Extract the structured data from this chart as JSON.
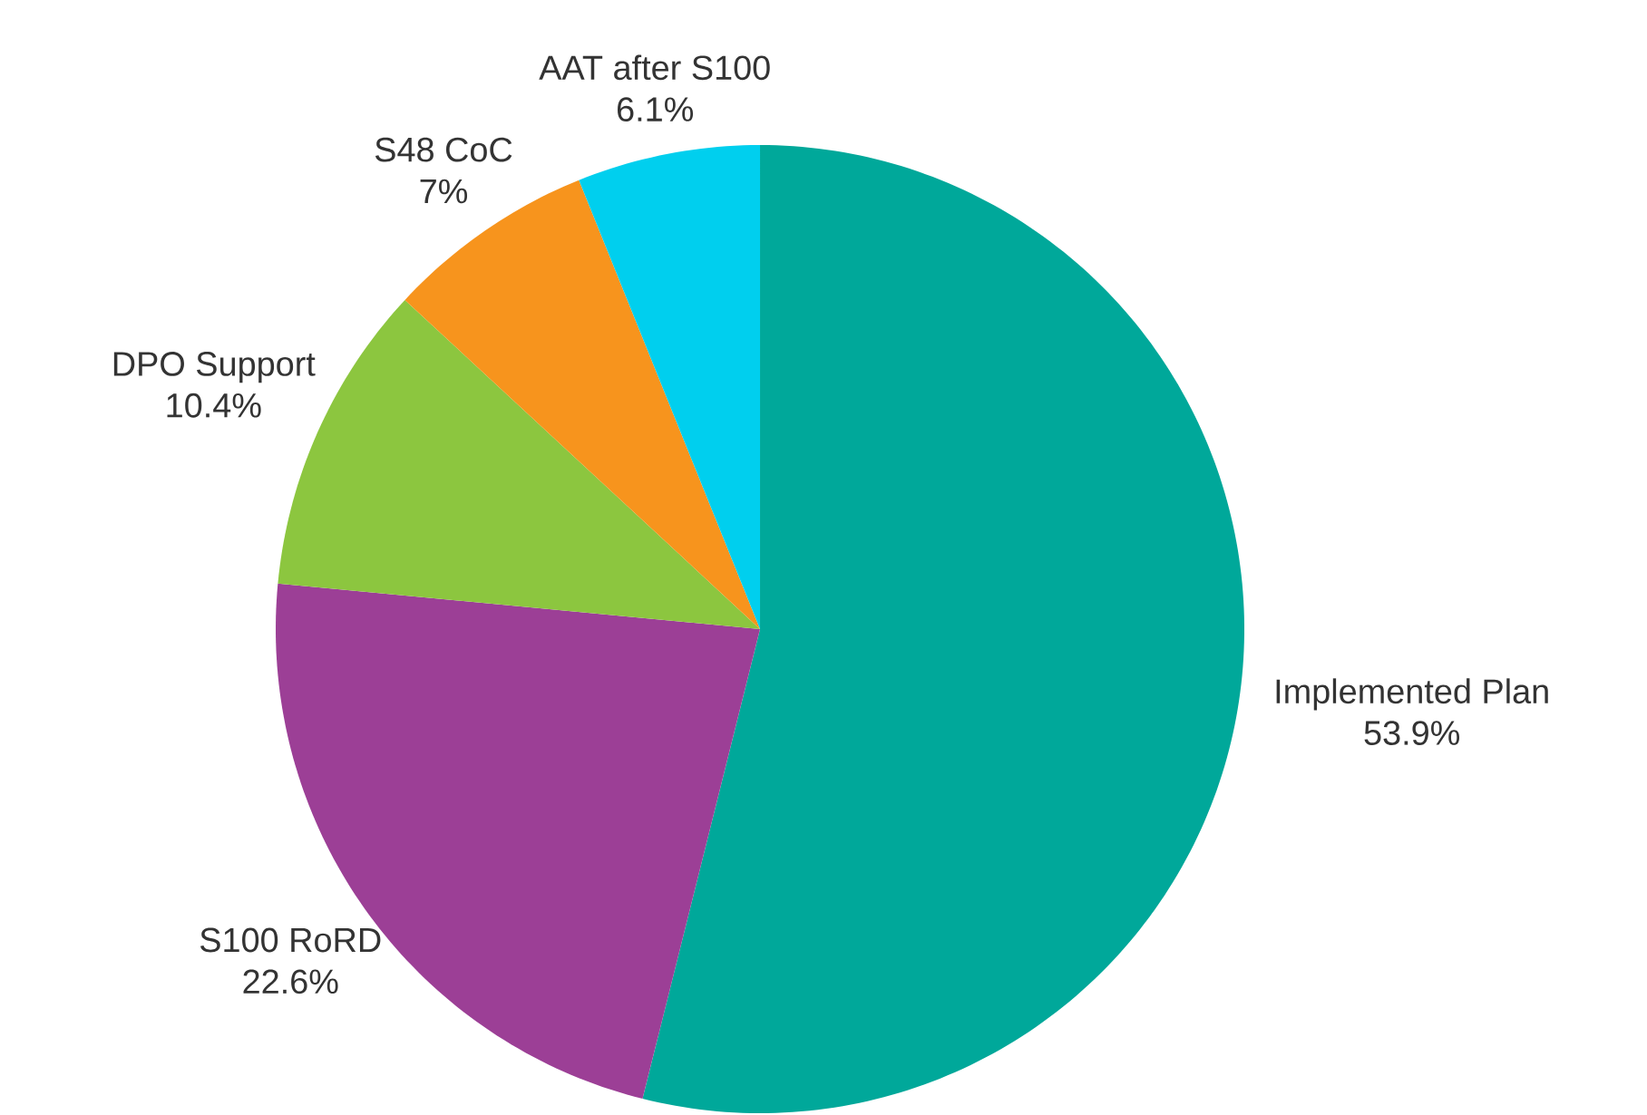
{
  "chart_data": {
    "type": "pie",
    "categories": [
      "Implemented Plan",
      "S100 RoRD",
      "DPO Support",
      "S48 CoC",
      "AAT after S100"
    ],
    "values": [
      53.9,
      22.6,
      10.4,
      7,
      6.1
    ],
    "value_labels": [
      "53.9%",
      "22.6%",
      "10.4%",
      "7%",
      "6.1%"
    ],
    "colors": [
      "#00a89a",
      "#9c3f96",
      "#8cc63f",
      "#f7941d",
      "#00cfee"
    ]
  }
}
